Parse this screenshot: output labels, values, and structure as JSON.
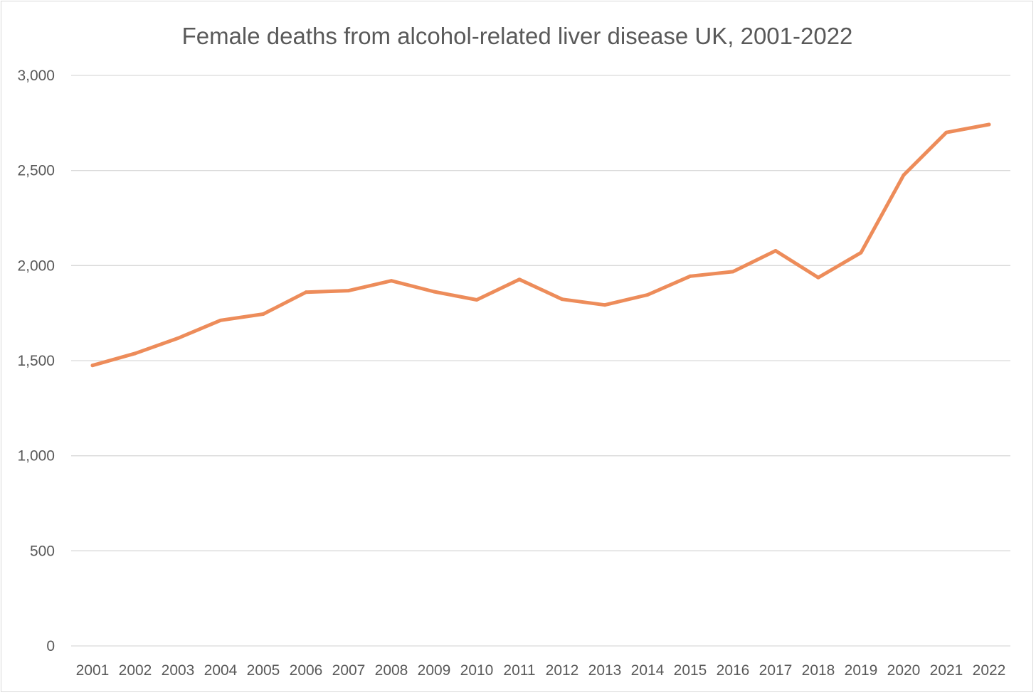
{
  "chart_data": {
    "type": "line",
    "title": "Female deaths from alcohol-related liver disease UK, 2001-2022",
    "xlabel": "",
    "ylabel": "",
    "categories": [
      "2001",
      "2002",
      "2003",
      "2004",
      "2005",
      "2006",
      "2007",
      "2008",
      "2009",
      "2010",
      "2011",
      "2012",
      "2013",
      "2014",
      "2015",
      "2016",
      "2017",
      "2018",
      "2019",
      "2020",
      "2021",
      "2022"
    ],
    "series": [
      {
        "color": "#ed8c5a",
        "values": [
          1475,
          1538,
          1618,
          1712,
          1745,
          1860,
          1868,
          1920,
          1863,
          1820,
          1927,
          1823,
          1793,
          1846,
          1944,
          1968,
          2078,
          1937,
          2068,
          2476,
          2700,
          2742
        ]
      }
    ],
    "ylim": [
      0,
      3000
    ],
    "yticks": [
      0,
      500,
      1000,
      1500,
      2000,
      2500,
      3000
    ],
    "ytick_labels": [
      "0",
      "500",
      "1,000",
      "1,500",
      "2,000",
      "2,500",
      "3,000"
    ],
    "grid": true,
    "legend": "none"
  }
}
